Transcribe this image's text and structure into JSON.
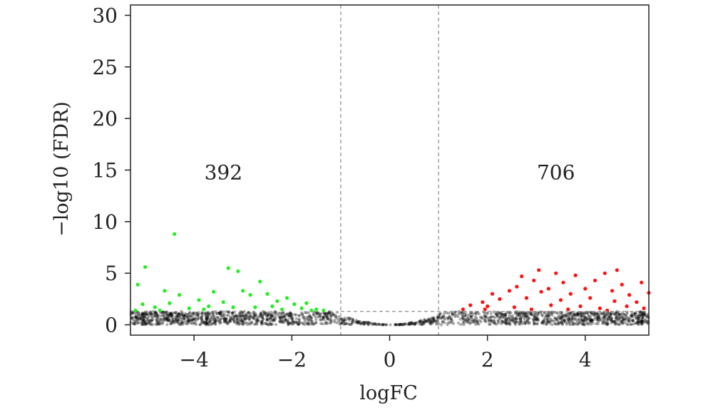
{
  "chart_data": {
    "type": "scatter",
    "title": "",
    "xlabel": "logFC",
    "ylabel": "−log10 (FDR)",
    "xlim": [
      -5.3,
      5.3
    ],
    "ylim": [
      -1,
      31
    ],
    "x_ticks": [
      -4,
      -2,
      0,
      2,
      4
    ],
    "x_tick_labels": [
      "−4",
      "−2",
      "0",
      "2",
      "4"
    ],
    "y_ticks": [
      0,
      5,
      10,
      15,
      20,
      25,
      30
    ],
    "y_tick_labels": [
      "0",
      "5",
      "10",
      "15",
      "20",
      "25",
      "30"
    ],
    "thresholds": {
      "logfc_low": -1,
      "logfc_high": 1,
      "neg_log10_fdr": 1.3
    },
    "annotations": [
      {
        "text": "392",
        "x": -3.4,
        "y": 14.8,
        "color": "#00b050",
        "group": "down"
      },
      {
        "text": "706",
        "x": 3.4,
        "y": 14.8,
        "color": "#e31a1c",
        "group": "up"
      }
    ],
    "colors": {
      "down": "#22ee22",
      "up": "#ff1111",
      "not_significant": "#000000",
      "threshold_line": "#999999",
      "down_label": "#00b050",
      "up_label": "#e31a1c"
    },
    "grid": false,
    "legend": "none",
    "series": [
      {
        "group": "down",
        "points": [
          [
            -4.4,
            8.8
          ],
          [
            -5.0,
            5.6
          ],
          [
            -3.3,
            5.5
          ],
          [
            -3.1,
            5.2
          ],
          [
            -2.65,
            4.2
          ],
          [
            -5.15,
            3.9
          ],
          [
            -4.6,
            3.3
          ],
          [
            -4.3,
            2.9
          ],
          [
            -3.6,
            3.2
          ],
          [
            -3.0,
            3.3
          ],
          [
            -2.85,
            2.9
          ],
          [
            -2.5,
            3.0
          ],
          [
            -2.1,
            2.6
          ],
          [
            -3.9,
            2.4
          ],
          [
            -5.05,
            2.0
          ],
          [
            -4.5,
            2.1
          ],
          [
            -3.4,
            2.2
          ],
          [
            -2.3,
            2.3
          ],
          [
            -1.7,
            2.1
          ],
          [
            -1.95,
            2.0
          ],
          [
            -4.8,
            1.7
          ],
          [
            -4.1,
            1.6
          ],
          [
            -3.7,
            1.8
          ],
          [
            -3.2,
            1.7
          ],
          [
            -2.75,
            1.7
          ],
          [
            -2.4,
            1.8
          ],
          [
            -1.8,
            1.6
          ],
          [
            -1.5,
            1.5
          ],
          [
            -5.2,
            1.4
          ],
          [
            -4.7,
            1.4
          ],
          [
            -3.8,
            1.5
          ],
          [
            -2.2,
            1.5
          ],
          [
            -1.6,
            1.4
          ],
          [
            -1.35,
            1.4
          ]
        ]
      },
      {
        "group": "up",
        "points": [
          [
            3.05,
            5.3
          ],
          [
            4.65,
            5.3
          ],
          [
            3.4,
            5.0
          ],
          [
            2.7,
            4.7
          ],
          [
            3.8,
            4.8
          ],
          [
            4.4,
            5.0
          ],
          [
            5.15,
            4.1
          ],
          [
            2.95,
            4.3
          ],
          [
            3.55,
            4.1
          ],
          [
            4.2,
            4.3
          ],
          [
            4.75,
            3.9
          ],
          [
            2.6,
            3.7
          ],
          [
            3.25,
            3.5
          ],
          [
            4.0,
            3.5
          ],
          [
            4.55,
            3.3
          ],
          [
            2.1,
            3.0
          ],
          [
            2.45,
            3.3
          ],
          [
            3.1,
            3.2
          ],
          [
            3.7,
            3.0
          ],
          [
            5.3,
            3.1
          ],
          [
            4.9,
            2.9
          ],
          [
            1.9,
            2.2
          ],
          [
            2.25,
            2.5
          ],
          [
            2.8,
            2.6
          ],
          [
            3.5,
            2.4
          ],
          [
            4.1,
            2.6
          ],
          [
            4.6,
            2.3
          ],
          [
            5.05,
            2.2
          ],
          [
            1.65,
            1.9
          ],
          [
            2.0,
            1.8
          ],
          [
            2.55,
            1.7
          ],
          [
            3.3,
            1.9
          ],
          [
            3.9,
            1.8
          ],
          [
            4.3,
            1.6
          ],
          [
            4.85,
            1.8
          ],
          [
            1.5,
            1.5
          ],
          [
            1.95,
            1.5
          ],
          [
            2.9,
            1.5
          ],
          [
            3.65,
            1.5
          ],
          [
            4.45,
            1.4
          ],
          [
            5.2,
            1.6
          ]
        ]
      }
    ]
  }
}
